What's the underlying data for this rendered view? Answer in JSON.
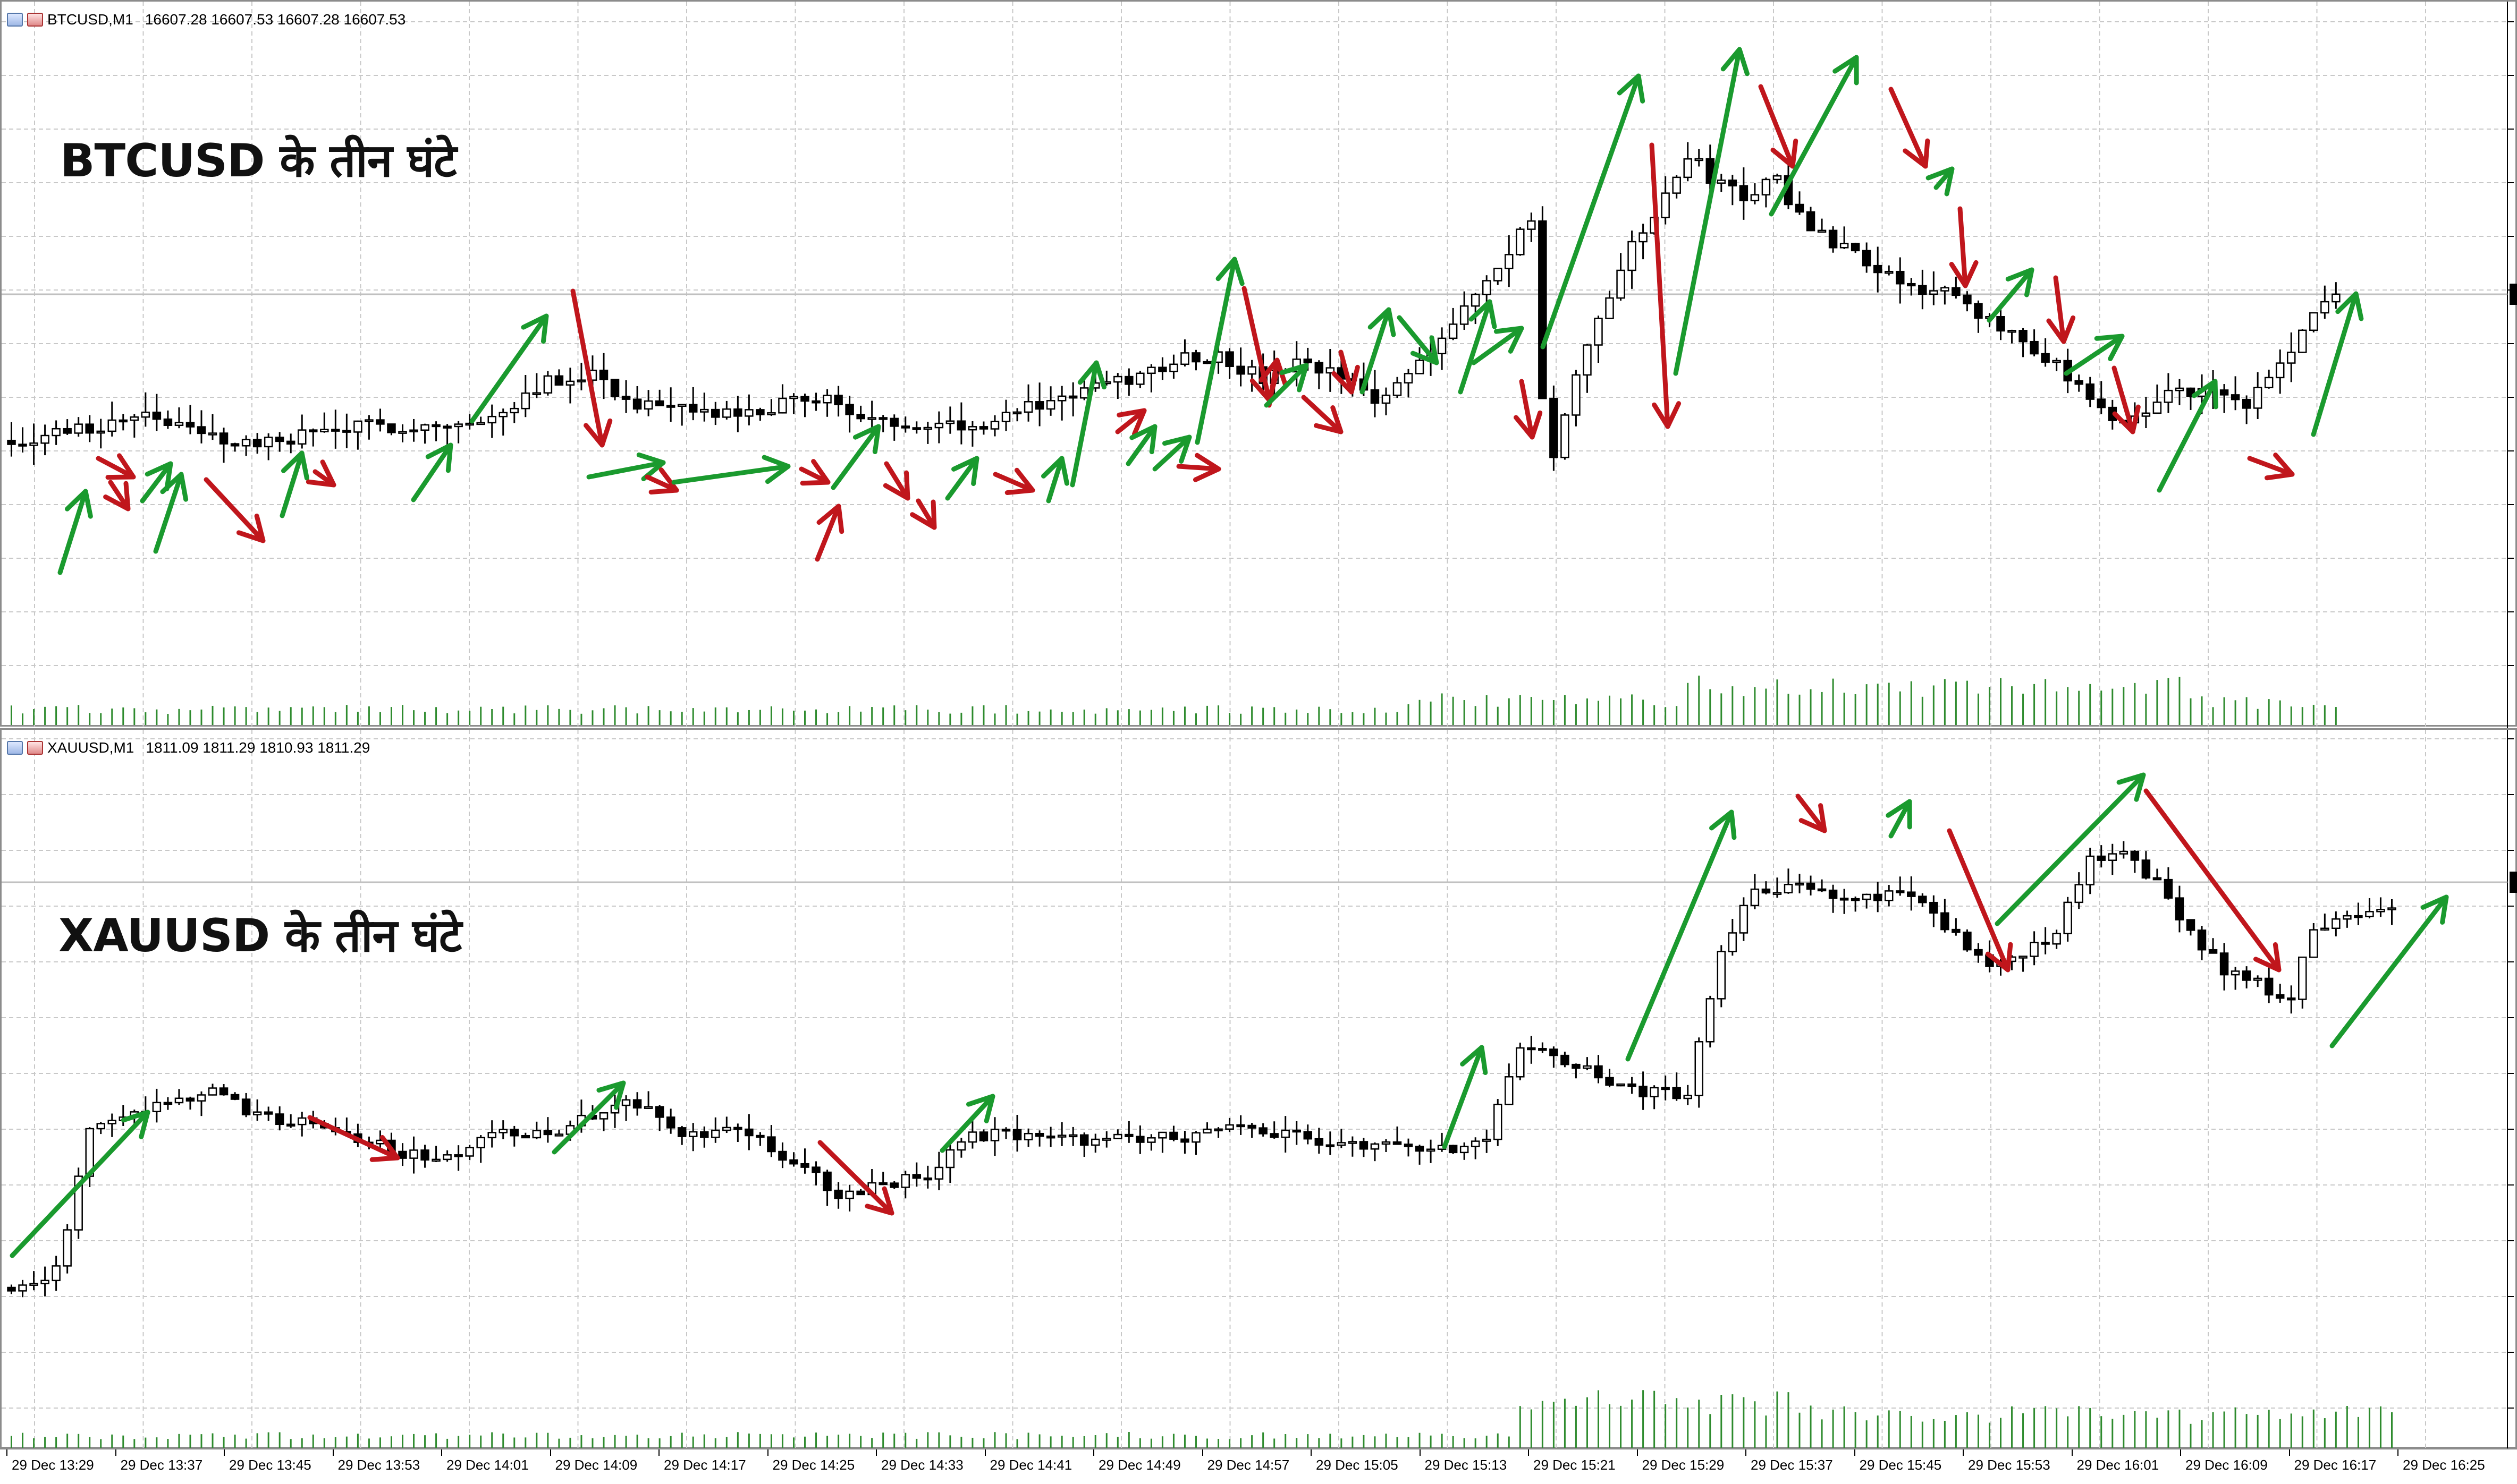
{
  "btc_panel": {
    "symbol": "BTCUSD,M1",
    "quote": "16607.28 16607.53 16607.28 16607.53",
    "title": "BTCUSD के तीन घंटे"
  },
  "xau_panel": {
    "symbol": "XAUUSD,M1",
    "quote": "1811.09 1811.29 1810.93 1811.29",
    "title": "XAUUSD के तीन घंटे"
  },
  "colors": {
    "up_arrow": "#1a9a2e",
    "down_arrow": "#c0161c",
    "volume": "#2e8b2e",
    "candle": "#000000",
    "grid": "#c8c8c8",
    "bid_line": "#c0c0c0"
  },
  "time_axis": {
    "labels": [
      "29 Dec 13:29",
      "29 Dec 13:37",
      "29 Dec 13:45",
      "29 Dec 13:53",
      "29 Dec 14:01",
      "29 Dec 14:09",
      "29 Dec 14:17",
      "29 Dec 14:25",
      "29 Dec 14:33",
      "29 Dec 14:41",
      "29 Dec 14:49",
      "29 Dec 14:57",
      "29 Dec 15:05",
      "29 Dec 15:13",
      "29 Dec 15:21",
      "29 Dec 15:29",
      "29 Dec 15:37",
      "29 Dec 15:45",
      "29 Dec 15:53",
      "29 Dec 16:01",
      "29 Dec 16:09",
      "29 Dec 16:17",
      "29 Dec 16:25"
    ]
  },
  "chart_data": [
    {
      "type": "candlestick",
      "title": "BTCUSD के तीन घंटे",
      "series_name": "BTCUSD,M1",
      "timeframe": "M1",
      "x_range": [
        "29 Dec 13:29",
        "29 Dec 16:25"
      ],
      "grid": true,
      "last_price": 16607.53,
      "price_path": [
        [
          0,
          0.27
        ],
        [
          8,
          0.3
        ],
        [
          12,
          0.33
        ],
        [
          17,
          0.28
        ],
        [
          22,
          0.26
        ],
        [
          28,
          0.29
        ],
        [
          34,
          0.3
        ],
        [
          42,
          0.3
        ],
        [
          47,
          0.38
        ],
        [
          52,
          0.41
        ],
        [
          55,
          0.35
        ],
        [
          58,
          0.33
        ],
        [
          66,
          0.32
        ],
        [
          72,
          0.36
        ],
        [
          75,
          0.33
        ],
        [
          78,
          0.3
        ],
        [
          82,
          0.31
        ],
        [
          86,
          0.3
        ],
        [
          90,
          0.33
        ],
        [
          96,
          0.37
        ],
        [
          100,
          0.39
        ],
        [
          105,
          0.44
        ],
        [
          108,
          0.44
        ],
        [
          112,
          0.39
        ],
        [
          115,
          0.42
        ],
        [
          120,
          0.39
        ],
        [
          122,
          0.34
        ],
        [
          125,
          0.41
        ],
        [
          128,
          0.48
        ],
        [
          131,
          0.56
        ],
        [
          134,
          0.64
        ],
        [
          136,
          0.72
        ],
        [
          137,
          0.35
        ],
        [
          138,
          0.24
        ],
        [
          141,
          0.46
        ],
        [
          144,
          0.62
        ],
        [
          147,
          0.72
        ],
        [
          150,
          0.84
        ],
        [
          152,
          0.8
        ],
        [
          155,
          0.76
        ],
        [
          158,
          0.79
        ],
        [
          161,
          0.69
        ],
        [
          164,
          0.66
        ],
        [
          167,
          0.62
        ],
        [
          170,
          0.58
        ],
        [
          173,
          0.57
        ],
        [
          176,
          0.51
        ],
        [
          179,
          0.49
        ],
        [
          182,
          0.44
        ],
        [
          185,
          0.37
        ],
        [
          188,
          0.3
        ],
        [
          191,
          0.33
        ],
        [
          194,
          0.38
        ],
        [
          197,
          0.36
        ],
        [
          200,
          0.34
        ],
        [
          203,
          0.42
        ],
        [
          206,
          0.52
        ],
        [
          208,
          0.56
        ]
      ],
      "volume_profile": "low through 14:25, rising after 14:41, highest 15:21–16:01",
      "annotations": [
        {
          "type": "trend-arrow",
          "direction": "up",
          "count": 29
        },
        {
          "type": "trend-arrow",
          "direction": "down",
          "count": 25
        }
      ]
    },
    {
      "type": "candlestick",
      "title": "XAUUSD के तीन घंटे",
      "series_name": "XAUUSD,M1",
      "timeframe": "M1",
      "x_range": [
        "29 Dec 13:29",
        "29 Dec 16:25"
      ],
      "grid": true,
      "last_price": 1811.29,
      "price_path": [
        [
          0,
          0.1
        ],
        [
          4,
          0.13
        ],
        [
          7,
          0.4
        ],
        [
          12,
          0.43
        ],
        [
          18,
          0.47
        ],
        [
          22,
          0.42
        ],
        [
          28,
          0.4
        ],
        [
          33,
          0.37
        ],
        [
          37,
          0.34
        ],
        [
          40,
          0.36
        ],
        [
          44,
          0.4
        ],
        [
          48,
          0.38
        ],
        [
          52,
          0.43
        ],
        [
          56,
          0.45
        ],
        [
          60,
          0.38
        ],
        [
          65,
          0.4
        ],
        [
          70,
          0.34
        ],
        [
          74,
          0.28
        ],
        [
          78,
          0.29
        ],
        [
          82,
          0.31
        ],
        [
          86,
          0.39
        ],
        [
          92,
          0.38
        ],
        [
          98,
          0.38
        ],
        [
          104,
          0.38
        ],
        [
          110,
          0.4
        ],
        [
          116,
          0.38
        ],
        [
          122,
          0.37
        ],
        [
          128,
          0.36
        ],
        [
          132,
          0.38
        ],
        [
          135,
          0.55
        ],
        [
          138,
          0.54
        ],
        [
          142,
          0.5
        ],
        [
          146,
          0.47
        ],
        [
          150,
          0.46
        ],
        [
          153,
          0.74
        ],
        [
          156,
          0.85
        ],
        [
          160,
          0.86
        ],
        [
          164,
          0.83
        ],
        [
          168,
          0.84
        ],
        [
          171,
          0.82
        ],
        [
          174,
          0.76
        ],
        [
          177,
          0.7
        ],
        [
          180,
          0.73
        ],
        [
          183,
          0.77
        ],
        [
          186,
          0.9
        ],
        [
          189,
          0.93
        ],
        [
          192,
          0.86
        ],
        [
          195,
          0.77
        ],
        [
          198,
          0.7
        ],
        [
          201,
          0.67
        ],
        [
          204,
          0.65
        ],
        [
          206,
          0.77
        ],
        [
          210,
          0.8
        ],
        [
          213,
          0.82
        ]
      ],
      "volume_profile": "low through 15:13, elevated 15:13–16:25",
      "annotations": [
        {
          "type": "trend-arrow",
          "direction": "up",
          "count": 10
        },
        {
          "type": "trend-arrow",
          "direction": "down",
          "count": 6
        }
      ]
    }
  ]
}
